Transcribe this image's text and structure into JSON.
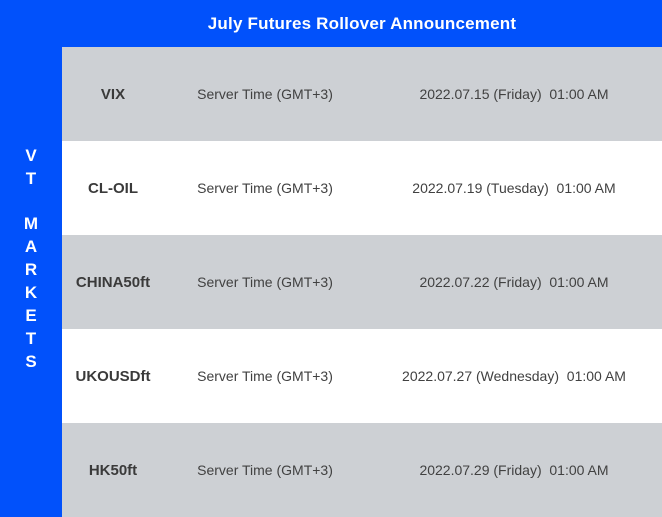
{
  "header": {
    "title": "July Futures Rollover Announcement"
  },
  "sidebar": {
    "brand_lines": [
      "VT",
      "MARKETS"
    ]
  },
  "table": {
    "rows": [
      {
        "symbol": "VIX",
        "server_time": "Server Time (GMT+3)",
        "rollover_datetime": "2022.07.15 (Friday)  01:00 AM"
      },
      {
        "symbol": "CL-OIL",
        "server_time": "Server Time (GMT+3)",
        "rollover_datetime": "2022.07.19 (Tuesday)  01:00 AM"
      },
      {
        "symbol": "CHINA50ft",
        "server_time": "Server Time (GMT+3)",
        "rollover_datetime": "2022.07.22 (Friday)  01:00 AM"
      },
      {
        "symbol": "UKOUSDft",
        "server_time": "Server Time (GMT+3)",
        "rollover_datetime": "2022.07.27 (Wednesday)  01:00 AM"
      },
      {
        "symbol": "HK50ft",
        "server_time": "Server Time (GMT+3)",
        "rollover_datetime": "2022.07.29 (Friday)  01:00 AM"
      }
    ]
  },
  "colors": {
    "brand_blue": "#0151FB",
    "row_gray": "#CDD0D4",
    "row_white": "#FFFFFF",
    "title_text": "#FFFFFF",
    "row_text": "#414141"
  }
}
